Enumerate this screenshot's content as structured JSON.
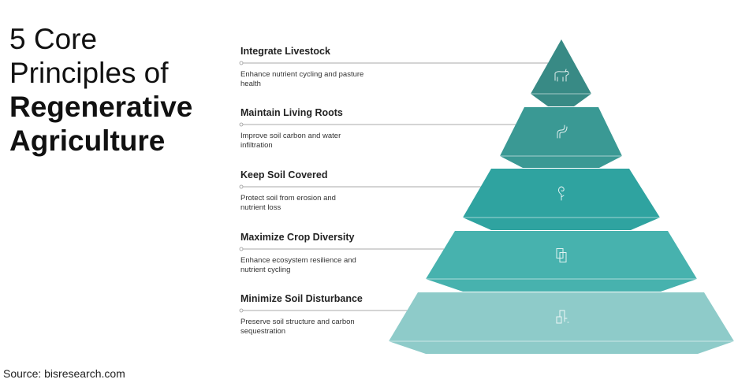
{
  "title": {
    "line1": "5 Core",
    "line2": "Principles of",
    "line3": "Regenerative",
    "line4": "Agriculture"
  },
  "source": "Source: bisresearch.com",
  "tiers": [
    {
      "title": "Integrate Livestock",
      "desc1": "Enhance nutrient cycling and pasture",
      "desc2": "health",
      "icon": "cow-icon",
      "color": "#388a85"
    },
    {
      "title": "Maintain Living Roots",
      "desc1": "Improve soil carbon and water",
      "desc2": "infiltration",
      "icon": "worm-icon",
      "color": "#3a9994"
    },
    {
      "title": "Keep Soil Covered",
      "desc1": "Protect soil from erosion and",
      "desc2": "nutrient loss",
      "icon": "sprout-icon",
      "color": "#2fa3a0"
    },
    {
      "title": "Maximize Crop Diversity",
      "desc1": "Enhance ecosystem resilience and",
      "desc2": "nutrient cycling",
      "icon": "overlapping-squares-icon",
      "color": "#47b2ae"
    },
    {
      "title": "Minimize Soil Disturbance",
      "desc1": "Preserve soil structure and carbon",
      "desc2": "sequestration",
      "icon": "tractor-icon",
      "color": "#8ecbc9"
    }
  ]
}
